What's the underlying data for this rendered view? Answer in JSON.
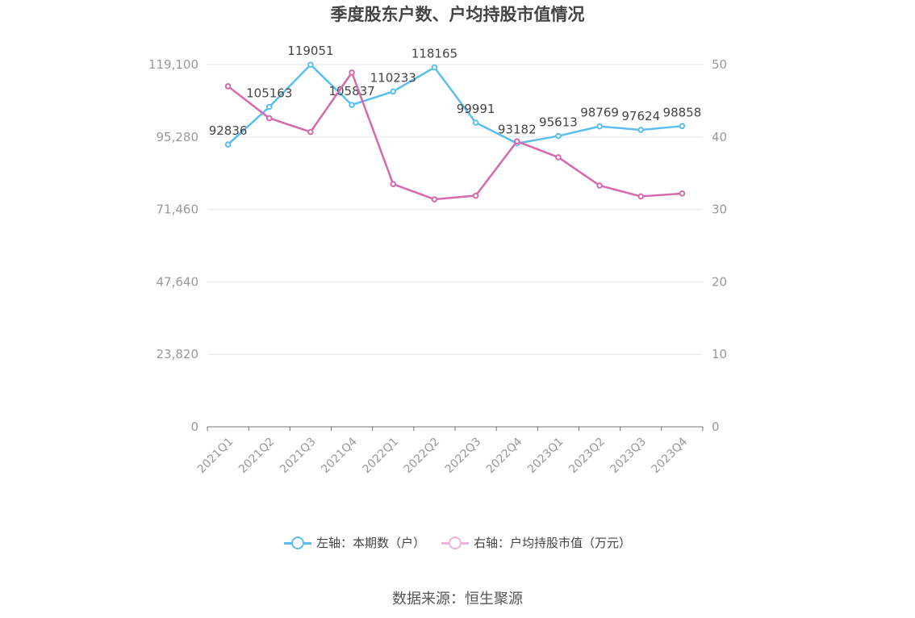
{
  "chart_data": {
    "type": "line",
    "title": "季度股东户数、户均持股市值情况",
    "categories": [
      "2021Q1",
      "2021Q2",
      "2021Q3",
      "2021Q4",
      "2022Q1",
      "2022Q2",
      "2022Q3",
      "2022Q4",
      "2023Q1",
      "2023Q2",
      "2023Q3",
      "2023Q4"
    ],
    "series": [
      {
        "name": "左轴：本期数（户）",
        "axis": "left",
        "color": "#5bbfee",
        "values": [
          92836,
          105163,
          119051,
          105837,
          110233,
          118165,
          99991,
          93182,
          95613,
          98769,
          97624,
          98858
        ],
        "labels": [
          "92836",
          "105163",
          "119051",
          "105837",
          "110233",
          "118165",
          "99991",
          "93182",
          "95613",
          "98769",
          "97624",
          "98858"
        ]
      },
      {
        "name": "右轴：户均持股市值（万元）",
        "axis": "right",
        "color": "#d46aad",
        "values": [
          47.0,
          42.6,
          40.7,
          48.9,
          33.5,
          31.4,
          31.9,
          39.4,
          37.2,
          33.3,
          31.8,
          32.2
        ]
      }
    ],
    "left_axis": {
      "min": 0,
      "max": 119100,
      "ticks": [
        0,
        23820,
        47640,
        71460,
        95280,
        119100
      ],
      "tick_labels": [
        "0",
        "23,820",
        "47,640",
        "71,460",
        "95,280",
        "119,100"
      ]
    },
    "right_axis": {
      "min": 0,
      "max": 50,
      "ticks": [
        0,
        10,
        20,
        30,
        40,
        50
      ],
      "tick_labels": [
        "0",
        "10",
        "20",
        "30",
        "40",
        "50"
      ]
    },
    "grid": true,
    "legend_position": "bottom"
  },
  "source_text": "数据来源：恒生聚源"
}
